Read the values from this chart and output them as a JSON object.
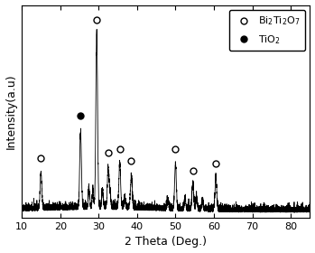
{
  "xlabel": "2 Theta (Deg.)",
  "ylabel": "Intensity(a.u)",
  "xlim": [
    10,
    85
  ],
  "xmin": 10,
  "xmax": 85,
  "xticks": [
    10,
    20,
    30,
    40,
    50,
    60,
    70,
    80
  ],
  "legend_label_1": "Bi$_2$Ti$_2$O$_7$",
  "legend_label_2": "TiO$_2$",
  "bto_peaks": [
    15.0,
    29.5,
    32.5,
    35.5,
    38.5,
    50.0,
    54.5,
    60.5
  ],
  "bto_peak_heights": [
    0.2,
    0.98,
    0.22,
    0.25,
    0.18,
    0.25,
    0.14,
    0.18
  ],
  "bto_marker_offsets": [
    0.07,
    0.05,
    0.07,
    0.07,
    0.07,
    0.07,
    0.07,
    0.07
  ],
  "tio2_peaks": [
    25.3
  ],
  "tio2_peak_heights": [
    0.42
  ],
  "tio2_marker_offsets": [
    0.08
  ],
  "small_peaks": [
    27.5,
    28.5,
    31.0,
    33.0,
    36.8,
    48.0,
    52.5,
    55.5,
    57.0
  ],
  "small_heights": [
    0.1,
    0.09,
    0.1,
    0.07,
    0.06,
    0.05,
    0.06,
    0.07,
    0.05
  ],
  "noise_seed": 42,
  "noise_amplitude": 0.018,
  "background_color": "#ffffff",
  "line_color": "#000000",
  "line_width": 0.6,
  "marker_size": 5,
  "legend_fontsize": 8,
  "axis_fontsize": 9,
  "tick_fontsize": 8
}
